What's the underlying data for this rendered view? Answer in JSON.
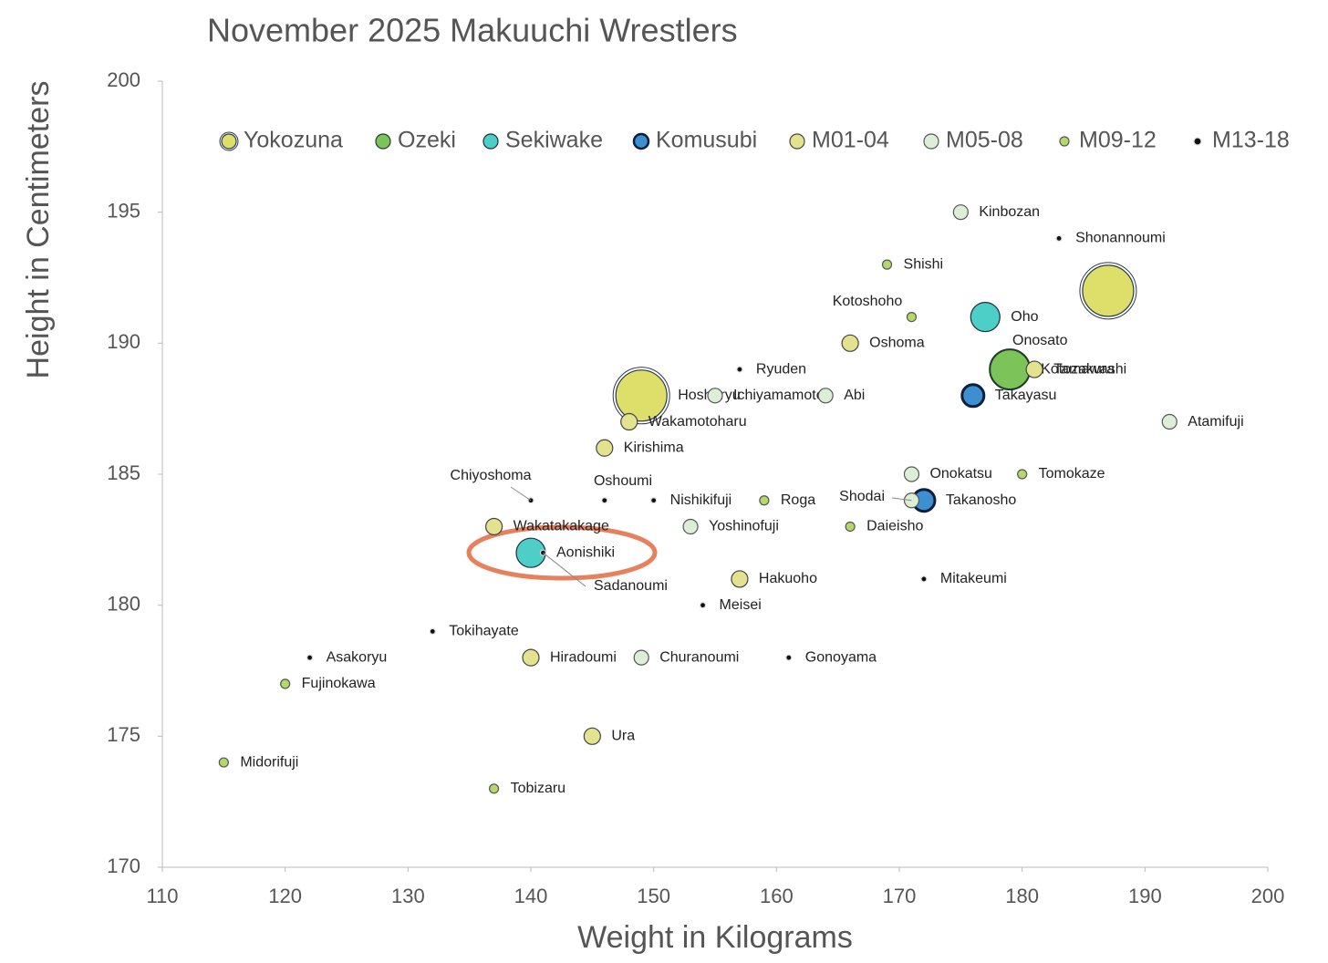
{
  "chart_data": {
    "type": "scatter",
    "title": "November 2025 Makuuchi Wrestlers",
    "x_label": "Weight in Kilograms",
    "y_label": "Height in Centimeters",
    "xlim": [
      110,
      200
    ],
    "xticks": [
      110,
      120,
      130,
      140,
      150,
      160,
      170,
      180,
      190,
      200
    ],
    "ylim": [
      170,
      200
    ],
    "yticks": [
      170,
      175,
      180,
      185,
      190,
      195,
      200
    ],
    "legend": "top",
    "series": [
      {
        "name": "Yokozuna",
        "color": "#dede6a",
        "stroke": "#2b3a4a",
        "marker_size": 28,
        "labels": [
          "Onosato",
          "Hoshoryu"
        ],
        "x": [
          187,
          149
        ],
        "values": [
          192,
          188
        ]
      },
      {
        "name": "Ozeki",
        "color": "#7cc35a",
        "stroke": "#1f3d2a",
        "marker_size": 22,
        "labels": [
          "Kotozakura"
        ],
        "x": [
          179
        ],
        "values": [
          189
        ]
      },
      {
        "name": "Sekiwake",
        "color": "#4dcfc8",
        "stroke": "#1a2e3a",
        "marker_size": 16,
        "labels": [
          "Oho",
          "Aonishiki"
        ],
        "x": [
          177,
          140
        ],
        "values": [
          191,
          182
        ]
      },
      {
        "name": "Komusubi",
        "color": "#3d8fd0",
        "stroke": "#0d1f3d",
        "marker_size": 12,
        "labels": [
          "Takayasu",
          "Takanosho"
        ],
        "x": [
          176,
          172
        ],
        "values": [
          188,
          184
        ]
      },
      {
        "name": "M01-04",
        "color": "#e3e28f",
        "stroke": "#444",
        "marker_size": 9,
        "labels": [
          "Oshoma",
          "Tamawashi",
          "Wakamotoharu",
          "Kirishima",
          "Wakatakakage",
          "Hakuoho",
          "Hiradoumi",
          "Ura"
        ],
        "x": [
          166,
          181,
          148,
          146,
          137,
          157,
          140,
          145
        ],
        "values": [
          190,
          189,
          187,
          186,
          183,
          181,
          178,
          175
        ]
      },
      {
        "name": "M05-08",
        "color": "#dcefd6",
        "stroke": "#555",
        "marker_size": 8,
        "labels": [
          "Kinbozan",
          "Ichiyamamoto",
          "Abi",
          "Atamifuji",
          "Onokatsu",
          "Shodai",
          "Yoshinofuji",
          "Churanoumi"
        ],
        "x": [
          175,
          155,
          164,
          192,
          171,
          171,
          153,
          149
        ],
        "values": [
          195,
          188,
          188,
          187,
          185,
          184,
          183,
          178
        ]
      },
      {
        "name": "M09-12",
        "color": "#b5d86a",
        "stroke": "#555",
        "marker_size": 5,
        "labels": [
          "Shishi",
          "Kotoshoho",
          "Tomokaze",
          "Roga",
          "Daieisho",
          "Fujinokawa",
          "Midorifuji",
          "Tobizaru"
        ],
        "x": [
          169,
          171,
          180,
          159,
          166,
          120,
          115,
          137
        ],
        "values": [
          193,
          191,
          185,
          184,
          183,
          177,
          174,
          173
        ]
      },
      {
        "name": "M13-18",
        "color": "#111111",
        "stroke": "#ddd",
        "marker_size": 3,
        "labels": [
          "Shonannoumi",
          "Ryuden",
          "Chiyoshoma",
          "Oshoumi",
          "Nishikifuji",
          "Sadanoumi",
          "Mitakeumi",
          "Meisei",
          "Tokihayate",
          "Asakoryu",
          "Gonoyama"
        ],
        "x": [
          183,
          157,
          140,
          146,
          150,
          141,
          172,
          154,
          132,
          122,
          161
        ],
        "values": [
          194,
          189,
          184,
          184,
          184,
          182,
          181,
          180,
          179,
          178,
          178
        ]
      }
    ]
  }
}
